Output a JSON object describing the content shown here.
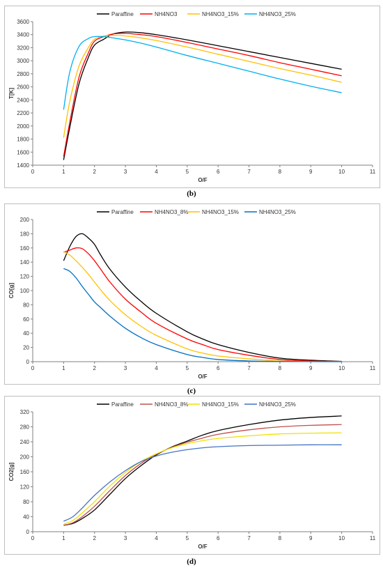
{
  "chart_data": [
    {
      "type": "line",
      "ylabel": "T[K]",
      "xlabel": "O/F",
      "caption": "(b)",
      "xlim": [
        0,
        11
      ],
      "ylim": [
        1400,
        3600
      ],
      "xticks": [
        "0",
        "1",
        "2",
        "3",
        "4",
        "5",
        "6",
        "7",
        "8",
        "9",
        "10",
        "11"
      ],
      "yticks": [
        "1400",
        "1600",
        "1800",
        "2000",
        "2200",
        "2400",
        "2600",
        "2800",
        "3000",
        "3200",
        "3400",
        "3600"
      ],
      "legend_position": "top",
      "series": [
        {
          "name": "Paraffine",
          "color": "#000000",
          "x": [
            1,
            1.2,
            1.5,
            1.8,
            2,
            2.3,
            2.6,
            3,
            3.5,
            4,
            5,
            6,
            7,
            8,
            9,
            10
          ],
          "y": [
            1480,
            1980,
            2650,
            3050,
            3240,
            3330,
            3410,
            3440,
            3430,
            3400,
            3320,
            3230,
            3140,
            3050,
            2960,
            2870
          ]
        },
        {
          "name": "NH4NO3",
          "color": "#ff0000",
          "x": [
            1,
            1.2,
            1.5,
            1.8,
            2,
            2.3,
            2.6,
            3,
            3.5,
            4,
            5,
            6,
            7,
            8,
            9,
            10
          ],
          "y": [
            1530,
            2060,
            2750,
            3120,
            3300,
            3370,
            3410,
            3420,
            3400,
            3370,
            3280,
            3180,
            3080,
            2970,
            2870,
            2770
          ]
        },
        {
          "name": "NH4NO3_15%",
          "color": "#ffc000",
          "x": [
            1,
            1.2,
            1.5,
            1.8,
            2,
            2.3,
            2.6,
            3,
            3.5,
            4,
            5,
            6,
            7,
            8,
            9,
            10
          ],
          "y": [
            1820,
            2380,
            2920,
            3200,
            3330,
            3380,
            3390,
            3380,
            3350,
            3310,
            3210,
            3100,
            2990,
            2880,
            2780,
            2670
          ]
        },
        {
          "name": "NH4NO3_25%",
          "color": "#00b0f0",
          "x": [
            1,
            1.2,
            1.5,
            1.8,
            2,
            2.3,
            2.6,
            3,
            3.5,
            4,
            5,
            6,
            7,
            8,
            9,
            10
          ],
          "y": [
            2250,
            2830,
            3220,
            3340,
            3370,
            3370,
            3350,
            3320,
            3270,
            3210,
            3080,
            2960,
            2840,
            2720,
            2610,
            2510
          ]
        }
      ]
    },
    {
      "type": "line",
      "ylabel": "CO[g]",
      "xlabel": "O/F",
      "caption": "(c)",
      "xlim": [
        0,
        11
      ],
      "ylim": [
        0,
        200
      ],
      "xticks": [
        "0",
        "1",
        "2",
        "3",
        "4",
        "5",
        "6",
        "7",
        "8",
        "9",
        "10",
        "11"
      ],
      "yticks": [
        "0",
        "20",
        "40",
        "60",
        "80",
        "100",
        "120",
        "140",
        "160",
        "180",
        "200"
      ],
      "legend_position": "top",
      "series": [
        {
          "name": "Paraffine",
          "color": "#000000",
          "x": [
            1,
            1.2,
            1.4,
            1.6,
            1.8,
            2,
            2.2,
            2.5,
            3,
            3.5,
            4,
            5,
            5.5,
            6,
            7,
            8,
            9,
            10
          ],
          "y": [
            142,
            162,
            176,
            180,
            174,
            165,
            150,
            130,
            105,
            85,
            68,
            42,
            32,
            24,
            13,
            5,
            2,
            0.5
          ]
        },
        {
          "name": "NH4NO3_8%",
          "color": "#ff0000",
          "x": [
            1,
            1.2,
            1.4,
            1.6,
            1.8,
            2,
            2.2,
            2.5,
            3,
            3.5,
            4,
            5,
            5.5,
            6,
            7,
            8,
            9,
            10
          ],
          "y": [
            154,
            157,
            160,
            159,
            152,
            142,
            130,
            112,
            88,
            70,
            54,
            32,
            24,
            17,
            9,
            3,
            1,
            0.3
          ]
        },
        {
          "name": "NH4NO3_15%",
          "color": "#ffc000",
          "x": [
            1,
            1.2,
            1.4,
            1.6,
            1.8,
            2,
            2.2,
            2.5,
            3,
            3.5,
            4,
            5,
            5.5,
            6,
            7,
            8,
            9,
            10
          ],
          "y": [
            155,
            150,
            142,
            133,
            123,
            112,
            101,
            86,
            66,
            50,
            37,
            18,
            12,
            8,
            4,
            1,
            0.4,
            0.1
          ]
        },
        {
          "name": "NH4NO3_25%",
          "color": "#0070c0",
          "x": [
            1,
            1.2,
            1.4,
            1.6,
            1.8,
            2,
            2.2,
            2.5,
            3,
            3.5,
            4,
            5,
            5.5,
            6,
            7,
            8,
            9,
            10
          ],
          "y": [
            131,
            127,
            118,
            106,
            95,
            84,
            76,
            64,
            47,
            34,
            24,
            10,
            6,
            3,
            1,
            0.3,
            0.1,
            0
          ]
        }
      ]
    },
    {
      "type": "line",
      "ylabel": "CO2[g]",
      "xlabel": "O/F",
      "caption": "(d)",
      "xlim": [
        0,
        11
      ],
      "ylim": [
        0,
        320
      ],
      "xticks": [
        "0",
        "1",
        "2",
        "3",
        "4",
        "5",
        "6",
        "7",
        "8",
        "9",
        "10",
        "11"
      ],
      "yticks": [
        "0",
        "40",
        "80",
        "120",
        "160",
        "200",
        "240",
        "280",
        "320"
      ],
      "legend_position": "top",
      "series": [
        {
          "name": "Paraffine",
          "color": "#000000",
          "x": [
            1,
            1.3,
            1.6,
            2,
            2.5,
            3,
            3.5,
            4,
            4.5,
            5,
            5.5,
            6,
            7,
            8,
            9,
            10
          ],
          "y": [
            17,
            22,
            35,
            58,
            100,
            142,
            176,
            205,
            226,
            242,
            258,
            270,
            286,
            298,
            305,
            309
          ]
        },
        {
          "name": "NH4NO3_8%",
          "color": "#c0504d",
          "x": [
            1,
            1.3,
            1.6,
            2,
            2.5,
            3,
            3.5,
            4,
            4.5,
            5,
            5.5,
            6,
            7,
            8,
            9,
            10
          ],
          "y": [
            17,
            24,
            40,
            68,
            110,
            150,
            182,
            207,
            225,
            239,
            250,
            260,
            272,
            280,
            284,
            286
          ]
        },
        {
          "name": "NH4NO3_15%",
          "color": "#f0e000",
          "x": [
            1,
            1.3,
            1.6,
            2,
            2.5,
            3,
            3.5,
            4,
            4.5,
            5,
            5.5,
            6,
            7,
            8,
            9,
            10
          ],
          "y": [
            20,
            30,
            50,
            80,
            122,
            158,
            187,
            208,
            224,
            235,
            243,
            249,
            256,
            261,
            263,
            264
          ]
        },
        {
          "name": "NH4NO3_25%",
          "color": "#4472c4",
          "x": [
            1,
            1.3,
            1.6,
            2,
            2.5,
            3,
            3.5,
            4,
            4.5,
            5,
            5.5,
            6,
            7,
            8,
            9,
            10
          ],
          "y": [
            28,
            40,
            63,
            97,
            133,
            163,
            187,
            202,
            212,
            219,
            224,
            227,
            230,
            231,
            232,
            232
          ]
        }
      ]
    }
  ]
}
